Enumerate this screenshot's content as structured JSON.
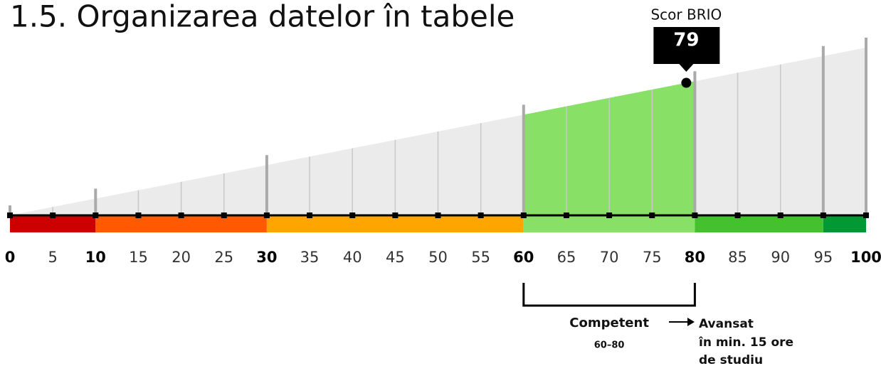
{
  "chart_data": {
    "type": "gauge",
    "title": "1.5. Organizarea datelor în tabele",
    "score_label": "Scor BRIO",
    "score": 79,
    "xlim": [
      0,
      100
    ],
    "xticks": [
      0,
      5,
      10,
      15,
      20,
      25,
      30,
      35,
      40,
      45,
      50,
      55,
      60,
      65,
      70,
      75,
      80,
      85,
      90,
      95,
      100
    ],
    "major_ticks": [
      0,
      10,
      30,
      60,
      80,
      100
    ],
    "bands": [
      {
        "from": 0,
        "to": 10,
        "color": "#cc0000"
      },
      {
        "from": 10,
        "to": 30,
        "color": "#ff5a00"
      },
      {
        "from": 30,
        "to": 60,
        "color": "#ffa500"
      },
      {
        "from": 60,
        "to": 80,
        "color": "#88e066"
      },
      {
        "from": 80,
        "to": 95,
        "color": "#44c22e"
      },
      {
        "from": 95,
        "to": 100,
        "color": "#009933"
      }
    ],
    "level": {
      "from": 60,
      "to": 80,
      "name": "Competent",
      "range_label": "60–80",
      "color": "#88e066"
    },
    "next_level": {
      "name": "Avansat",
      "note_lines": [
        "în min. 15 ore",
        "de studiu"
      ]
    }
  }
}
